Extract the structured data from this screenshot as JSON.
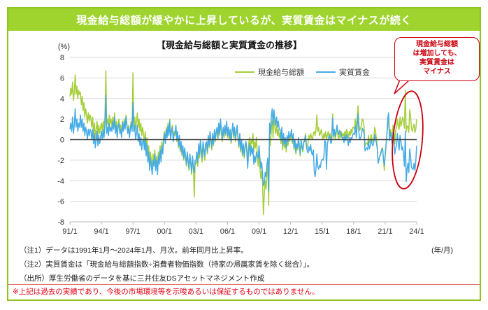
{
  "header": {
    "title": "現金給与総額が緩やかに上昇しているが、実質賃金はマイナスが続く",
    "bar_color": "#9ed42d",
    "frame_color": "#8fc31f"
  },
  "chart_data": {
    "type": "line",
    "title": "【現金給与総額と実質賃金の推移】",
    "ylabel": "(%)",
    "xlabel": "(年/月)",
    "ylim": [
      -8,
      8
    ],
    "y_ticks": [
      8,
      6,
      4,
      2,
      0,
      -2,
      -4,
      -6,
      -8
    ],
    "x_tick_labels": [
      "91/1",
      "94/1",
      "97/1",
      "00/1",
      "03/1",
      "06/1",
      "09/1",
      "12/1",
      "15/1",
      "18/1",
      "21/1",
      "24/1"
    ],
    "x_start": "1991/1",
    "x_end": "2024/1",
    "frequency": "monthly",
    "grid": true,
    "grid_color": "#d8d8d8",
    "zero_line_color": "#404040",
    "legend_position": "top-inside",
    "series": [
      {
        "name": "現金給与総額",
        "color": "#a5ce39",
        "values": [
          4.2,
          5.0,
          4.4,
          5.6,
          3.8,
          4.6,
          6.3,
          4.4,
          5.2,
          4.0,
          4.8,
          4.4,
          4.6,
          3.4,
          4.2,
          2.8,
          3.6,
          2.2,
          3.0,
          2.4,
          1.6,
          2.6,
          1.8,
          2.4,
          2.0,
          1.2,
          2.2,
          0.6,
          1.6,
          0.2,
          1.0,
          1.8,
          0.4,
          1.4,
          0.6,
          1.2,
          1.6,
          0.8,
          1.8,
          1.0,
          2.2,
          6.7,
          1.4,
          2.0,
          1.2,
          2.4,
          1.6,
          2.0,
          1.2,
          2.2,
          1.4,
          2.6,
          1.0,
          1.8,
          0.6,
          1.6,
          2.0,
          1.0,
          1.4,
          0.6,
          1.8,
          1.0,
          2.0,
          1.2,
          2.4,
          1.6,
          0.8,
          1.4,
          0.4,
          1.2,
          1.8,
          1.0,
          6.5,
          1.4,
          2.2,
          1.0,
          1.8,
          2.6,
          1.2,
          2.0,
          0.8,
          1.6,
          0.4,
          1.2,
          0.6,
          -0.4,
          0.8,
          -1.0,
          0.2,
          -1.6,
          -0.6,
          -2.4,
          -1.2,
          -2.0,
          -2.8,
          -1.4,
          -2.2,
          -1.0,
          -2.6,
          -1.6,
          -3.0,
          -1.2,
          -2.0,
          -0.6,
          -1.8,
          -0.2,
          -1.0,
          0.2,
          0.8,
          -0.2,
          1.2,
          0.4,
          1.6,
          0.6,
          2.0,
          0.2,
          1.0,
          1.4,
          0.0,
          0.8,
          0.4,
          1.2,
          -0.2,
          0.6,
          -0.8,
          0.2,
          -1.2,
          -0.4,
          -1.6,
          -0.8,
          -2.0,
          -1.0,
          -1.8,
          -2.6,
          -1.4,
          -2.2,
          -3.0,
          -1.6,
          -2.4,
          -3.4,
          -1.8,
          -2.8,
          -5.6,
          -2.2,
          -2.4,
          -1.6,
          -2.6,
          -0.8,
          -1.8,
          -0.4,
          -1.4,
          -2.2,
          -0.6,
          -1.2,
          -2.0,
          -0.8,
          -0.4,
          -1.4,
          0.2,
          -0.8,
          0.6,
          -0.2,
          -1.0,
          0.4,
          -0.6,
          0.8,
          -0.2,
          0.6,
          1.0,
          0.0,
          1.4,
          0.4,
          1.8,
          0.6,
          -0.2,
          1.0,
          0.2,
          1.2,
          0.4,
          1.6,
          0.2,
          1.0,
          0.0,
          0.8,
          -0.4,
          0.6,
          1.4,
          0.2,
          1.0,
          -0.2,
          0.6,
          1.2,
          0.0,
          -0.8,
          0.4,
          -1.2,
          -0.2,
          -1.6,
          -0.6,
          -1.8,
          -0.8,
          -0.2,
          -1.0,
          -1.8,
          -0.6,
          0.2,
          -1.0,
          0.0,
          -0.4,
          0.6,
          -1.2,
          -0.2,
          -0.8,
          0.2,
          -1.4,
          -2.6,
          -1.4,
          -2.8,
          -3.8,
          -3.0,
          -4.4,
          -7.3,
          -5.2,
          -4.0,
          -4.8,
          -3.4,
          -2.6,
          -6.4,
          0.4,
          -0.6,
          1.0,
          1.8,
          0.2,
          2.6,
          1.2,
          0.6,
          1.4,
          0.4,
          1.0,
          0.2,
          0.6,
          -0.4,
          0.8,
          -1.0,
          0.2,
          -0.8,
          -0.2,
          -1.2,
          0.0,
          -0.6,
          0.4,
          -0.2,
          0.2,
          0.8,
          -0.4,
          0.4,
          -1.0,
          -0.2,
          -1.4,
          -0.6,
          -1.0,
          0.0,
          -0.8,
          -1.6,
          -0.2,
          -0.8,
          -1.2,
          -0.4,
          0.0,
          0.6,
          -0.4,
          -0.9,
          -0.2,
          0.4,
          0.0,
          0.6,
          0.2,
          0.0,
          0.6,
          0.8,
          0.4,
          1.0,
          2.4,
          0.8,
          1.2,
          0.4,
          0.6,
          1.0,
          0.4,
          0.0,
          0.6,
          0.2,
          0.8,
          0.0,
          0.4,
          0.8,
          0.2,
          0.6,
          0.0,
          0.4,
          2.5,
          0.2,
          0.8,
          0.0,
          0.6,
          1.2,
          0.4,
          0.0,
          0.6,
          0.2,
          0.8,
          0.4,
          0.6,
          0.2,
          0.8,
          0.4,
          1.0,
          0.6,
          0.2,
          0.8,
          0.4,
          1.0,
          0.6,
          1.2,
          1.2,
          1.0,
          2.0,
          0.8,
          2.1,
          3.3,
          1.6,
          0.9,
          1.1,
          1.5,
          2.0,
          1.8,
          1.2,
          -0.6,
          -0.4,
          -0.3,
          -0.5,
          0.4,
          -0.3,
          -0.1,
          0.5,
          0.0,
          -0.2,
          0.0,
          1.2,
          0.8,
          0.1,
          -0.7,
          -2.3,
          -2.0,
          -1.5,
          -1.3,
          -0.9,
          -0.8,
          -1.8,
          -3.0,
          -1.3,
          -0.4,
          0.6,
          1.4,
          1.9,
          0.1,
          1.0,
          0.6,
          0.2,
          1.4,
          0.8,
          -0.4,
          0.9,
          1.2,
          2.0,
          1.3,
          1.0,
          2.2,
          1.3,
          1.7,
          2.2,
          1.8,
          1.1,
          4.8,
          0.8,
          1.3,
          1.3,
          0.7,
          2.9,
          2.3,
          1.1,
          0.8,
          1.2,
          1.5,
          0.7,
          1.0,
          2.0
        ]
      },
      {
        "name": "実質賃金",
        "color": "#45abe6",
        "values": [
          1.0,
          1.6,
          0.8,
          2.2,
          0.6,
          1.4,
          3.0,
          1.2,
          2.0,
          0.8,
          1.6,
          1.2,
          2.4,
          1.2,
          2.0,
          0.8,
          1.6,
          0.4,
          1.2,
          0.8,
          0.0,
          1.0,
          0.4,
          1.0,
          0.8,
          0.0,
          1.0,
          -0.4,
          0.6,
          -0.8,
          0.0,
          0.8,
          -0.6,
          0.4,
          -0.4,
          0.2,
          0.8,
          0.0,
          1.0,
          0.2,
          1.4,
          4.3,
          0.6,
          1.2,
          0.4,
          1.6,
          0.8,
          1.2,
          0.8,
          1.8,
          1.0,
          2.2,
          0.6,
          1.4,
          0.2,
          1.2,
          1.6,
          0.6,
          1.0,
          0.2,
          1.6,
          0.8,
          1.8,
          1.0,
          2.2,
          1.4,
          0.6,
          1.2,
          0.2,
          1.0,
          1.6,
          0.8,
          3.6,
          0.8,
          1.4,
          0.0,
          0.6,
          1.4,
          -0.2,
          0.6,
          -0.6,
          0.2,
          -1.0,
          -0.2,
          0.0,
          -1.0,
          0.2,
          -1.6,
          -0.4,
          -2.2,
          -1.2,
          -3.0,
          -1.8,
          -2.6,
          -3.4,
          -2.0,
          -2.6,
          -1.4,
          -3.0,
          -2.0,
          -3.4,
          -1.6,
          -2.4,
          -1.0,
          -2.2,
          -0.6,
          -1.4,
          -0.2,
          0.6,
          -0.4,
          1.0,
          0.2,
          1.4,
          0.4,
          1.8,
          0.0,
          0.8,
          1.2,
          -0.2,
          0.6,
          0.6,
          1.4,
          0.0,
          0.8,
          -0.6,
          0.4,
          -1.0,
          -0.2,
          -1.4,
          -0.6,
          -1.8,
          -0.8,
          -1.6,
          -2.4,
          -1.2,
          -2.0,
          -2.8,
          -1.4,
          -2.2,
          -3.2,
          -1.6,
          -2.6,
          -3.2,
          -2.0,
          -2.0,
          -1.2,
          -2.2,
          -0.4,
          -1.4,
          0.0,
          -1.0,
          -1.8,
          -0.2,
          -0.8,
          -1.6,
          -0.4,
          -0.2,
          -1.2,
          0.4,
          -0.6,
          0.8,
          0.0,
          -0.8,
          0.6,
          -0.4,
          1.0,
          0.0,
          0.8,
          1.2,
          0.2,
          1.6,
          0.6,
          2.0,
          0.8,
          0.0,
          1.2,
          0.4,
          1.4,
          0.6,
          1.8,
          0.4,
          1.2,
          0.2,
          1.0,
          -0.2,
          0.8,
          1.6,
          0.4,
          1.2,
          0.0,
          0.8,
          1.4,
          0.2,
          -0.6,
          0.6,
          -1.0,
          0.0,
          -1.4,
          -0.4,
          -1.6,
          -0.6,
          -0.2,
          -1.2,
          -2.8,
          -1.2,
          -0.4,
          -1.6,
          -0.6,
          -1.4,
          -0.8,
          -2.4,
          -1.6,
          -2.2,
          -1.2,
          -1.6,
          -1.8,
          -0.6,
          -1.8,
          -2.8,
          -2.2,
          -3.4,
          -4.5,
          -4.2,
          -3.2,
          -3.6,
          -2.4,
          -1.8,
          -5.0,
          1.6,
          0.6,
          2.2,
          3.0,
          1.4,
          2.9,
          2.0,
          1.4,
          2.2,
          1.2,
          1.8,
          1.0,
          1.0,
          0.0,
          1.2,
          -0.6,
          0.6,
          -0.4,
          0.2,
          -0.8,
          0.4,
          -0.2,
          0.8,
          0.2,
          0.4,
          1.0,
          -0.2,
          0.6,
          -0.8,
          0.0,
          -1.2,
          -0.4,
          -0.8,
          0.2,
          -0.6,
          -1.4,
          0.0,
          -0.6,
          -1.0,
          -0.2,
          -0.2,
          0.4,
          -0.6,
          -1.1,
          -1.3,
          -0.7,
          -1.1,
          -0.5,
          -1.3,
          -1.5,
          -1.0,
          -3.1,
          -3.6,
          -2.8,
          -1.4,
          -2.6,
          -2.9,
          -2.5,
          -2.7,
          -2.1,
          -1.9,
          -2.0,
          -1.7,
          -0.1,
          -0.2,
          -2.9,
          -0.5,
          0.0,
          0.4,
          0.2,
          -0.4,
          -0.1,
          2.1,
          0.4,
          1.0,
          0.3,
          0.8,
          1.4,
          0.8,
          0.5,
          0.9,
          0.6,
          0.5,
          0.1,
          0.2,
          -0.3,
          0.4,
          -0.1,
          0.5,
          0.0,
          -0.6,
          0.2,
          -0.3,
          0.2,
          0.1,
          0.5,
          0.6,
          0.5,
          1.3,
          0.2,
          1.3,
          2.5,
          0.7,
          0.0,
          0.2,
          0.5,
          1.1,
          0.9,
          0.6,
          -1.1,
          -0.9,
          -0.8,
          -1.0,
          -0.1,
          -0.9,
          -0.6,
          0.0,
          -0.4,
          -0.6,
          -0.3,
          0.5,
          0.1,
          -0.3,
          -0.9,
          -2.3,
          -1.9,
          -1.6,
          -1.4,
          -1.0,
          -0.9,
          -1.9,
          -2.5,
          -1.6,
          -0.6,
          0.5,
          2.1,
          2.6,
          -0.1,
          0.7,
          0.2,
          -0.4,
          0.7,
          0.0,
          -1.4,
          -0.9,
          -0.5,
          0.6,
          -0.3,
          -1.0,
          0.4,
          -0.2,
          -1.0,
          -0.7,
          -1.5,
          -2.6,
          0.8,
          -4.1,
          -2.9,
          -2.3,
          -3.2,
          -0.9,
          -1.6,
          -2.7,
          -2.8,
          -2.9,
          -2.3,
          -3.0,
          -2.1,
          -0.6
        ]
      }
    ],
    "annotation": {
      "lines": [
        "現金給与総額",
        "は増加しても、",
        "実質賃金は",
        "マイナス"
      ],
      "color": "#c9000e",
      "highlight": "ellipse around 2022-2024 data"
    }
  },
  "notes": {
    "note1": "（注1）データは1991年1月～2024年1月、月次。前年同月比上昇率。",
    "note2": "（注2）実質賃金は「現金給与総額指数÷消費者物価指数（持家の帰属家賃を除く総合）」。",
    "source": "（出所）厚生労働省のデータを基に三井住友DSアセットマネジメント作成",
    "disclaimer": "※上記は過去の実績であり、今後の市場環境等を示唆あるいは保証するものではありません。"
  }
}
